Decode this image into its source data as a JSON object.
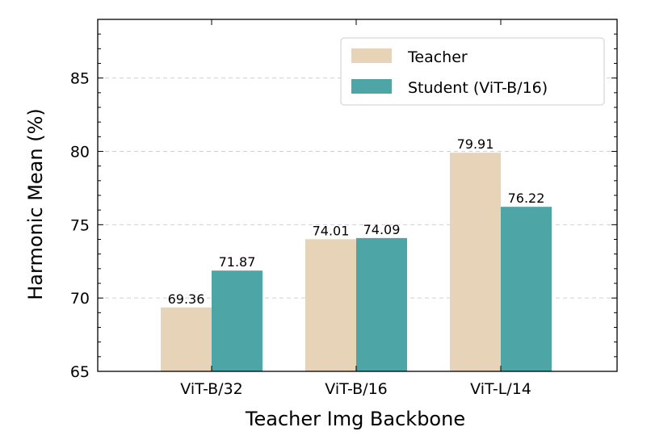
{
  "chart_data": {
    "type": "bar",
    "categories": [
      "ViT-B/32",
      "ViT-B/16",
      "ViT-L/14"
    ],
    "series": [
      {
        "name": "Teacher",
        "values": [
          69.36,
          74.01,
          79.91
        ],
        "color": "#e6d3b8"
      },
      {
        "name": "Student (ViT-B/16)",
        "values": [
          71.87,
          74.09,
          76.22
        ],
        "color": "#4ea5a6"
      }
    ],
    "data_labels": [
      [
        "69.36",
        "74.01",
        "79.91"
      ],
      [
        "71.87",
        "74.09",
        "76.22"
      ]
    ],
    "title": "",
    "xlabel": "Teacher Img Backbone",
    "ylabel": "Harmonic Mean (%)",
    "ylim": [
      65,
      89
    ],
    "yticks": [
      65,
      70,
      75,
      80,
      85
    ],
    "grid": "horizontal-dashed",
    "legend_position": "top-right"
  }
}
